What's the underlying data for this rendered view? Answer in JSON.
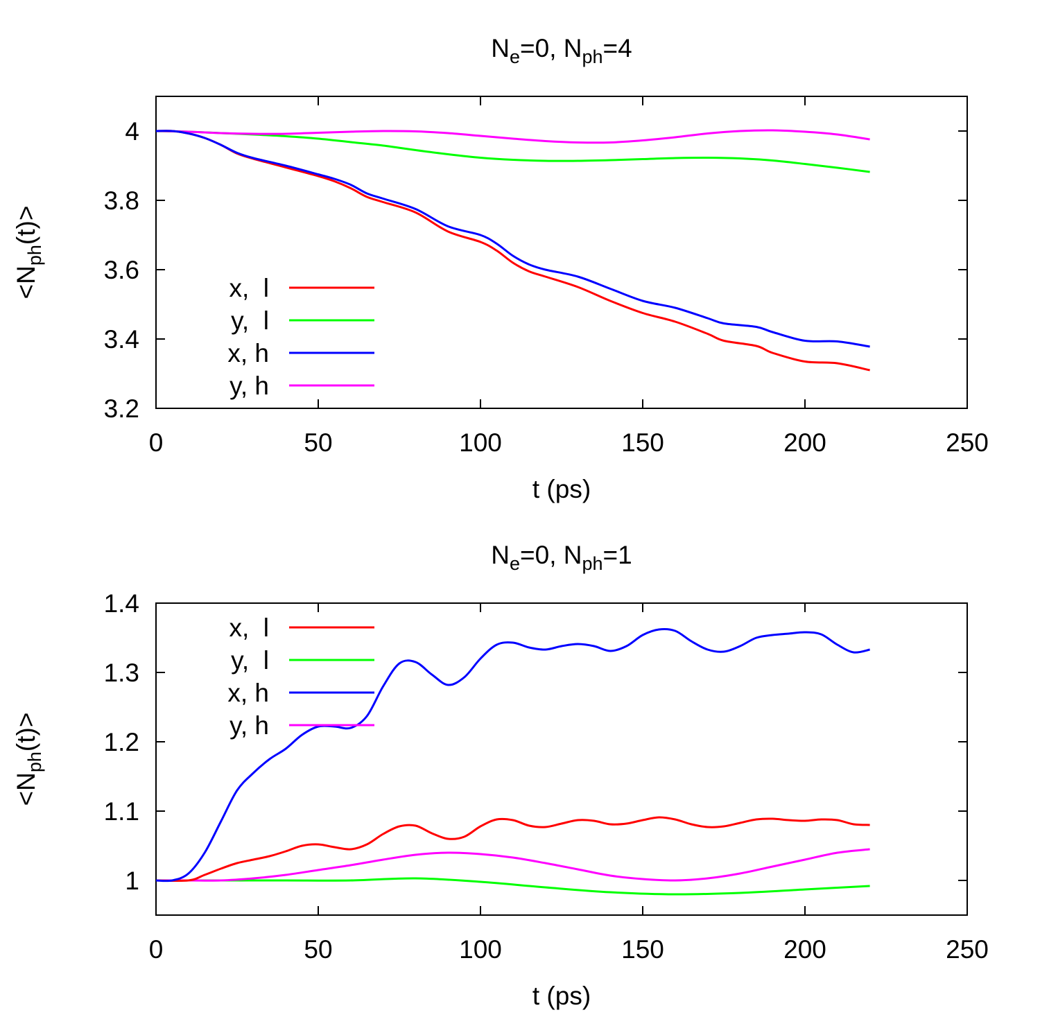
{
  "chart_data": [
    {
      "type": "line",
      "title": {
        "main": "N",
        "sub1": "e",
        "mid": "=0, N",
        "sub2": "ph",
        "end": "=4"
      },
      "xlabel": "t (ps)",
      "ylabel": {
        "pre": "<N",
        "sub": "ph",
        "post": "(t)>"
      },
      "xlim": [
        0,
        250
      ],
      "ylim": [
        3.2,
        4.1
      ],
      "xticks": [
        "0",
        "50",
        "100",
        "150",
        "200",
        "250"
      ],
      "xtick_values": [
        0,
        50,
        100,
        150,
        200,
        250
      ],
      "yticks": [
        "3.2",
        "3.4",
        "3.6",
        "3.8",
        "4"
      ],
      "ytick_values": [
        3.2,
        3.4,
        3.6,
        3.8,
        4.0
      ],
      "legend_placement": "lower-left",
      "series": [
        {
          "name": "x,  l",
          "color": "#ff0000",
          "points": [
            [
              0,
              4.0
            ],
            [
              5,
              4.0
            ],
            [
              10,
              3.993
            ],
            [
              15,
              3.98
            ],
            [
              20,
              3.96
            ],
            [
              25,
              3.935
            ],
            [
              30,
              3.92
            ],
            [
              40,
              3.895
            ],
            [
              50,
              3.87
            ],
            [
              55,
              3.855
            ],
            [
              60,
              3.835
            ],
            [
              65,
              3.81
            ],
            [
              70,
              3.795
            ],
            [
              80,
              3.765
            ],
            [
              90,
              3.71
            ],
            [
              100,
              3.68
            ],
            [
              105,
              3.655
            ],
            [
              110,
              3.62
            ],
            [
              115,
              3.595
            ],
            [
              120,
              3.58
            ],
            [
              130,
              3.55
            ],
            [
              140,
              3.51
            ],
            [
              150,
              3.475
            ],
            [
              160,
              3.45
            ],
            [
              170,
              3.415
            ],
            [
              175,
              3.395
            ],
            [
              185,
              3.38
            ],
            [
              190,
              3.36
            ],
            [
              200,
              3.335
            ],
            [
              210,
              3.33
            ],
            [
              220,
              3.31
            ]
          ]
        },
        {
          "name": "y,  l",
          "color": "#00ff00",
          "points": [
            [
              0,
              4.0
            ],
            [
              10,
              3.998
            ],
            [
              20,
              3.994
            ],
            [
              30,
              3.99
            ],
            [
              40,
              3.985
            ],
            [
              50,
              3.978
            ],
            [
              60,
              3.968
            ],
            [
              70,
              3.958
            ],
            [
              80,
              3.945
            ],
            [
              90,
              3.933
            ],
            [
              100,
              3.923
            ],
            [
              110,
              3.917
            ],
            [
              120,
              3.914
            ],
            [
              130,
              3.914
            ],
            [
              140,
              3.916
            ],
            [
              150,
              3.919
            ],
            [
              160,
              3.922
            ],
            [
              170,
              3.923
            ],
            [
              180,
              3.921
            ],
            [
              190,
              3.915
            ],
            [
              200,
              3.905
            ],
            [
              210,
              3.894
            ],
            [
              220,
              3.882
            ]
          ]
        },
        {
          "name": "x, h",
          "color": "#0000ff",
          "points": [
            [
              0,
              4.0
            ],
            [
              5,
              4.0
            ],
            [
              10,
              3.993
            ],
            [
              15,
              3.98
            ],
            [
              20,
              3.96
            ],
            [
              25,
              3.937
            ],
            [
              30,
              3.922
            ],
            [
              40,
              3.9
            ],
            [
              50,
              3.875
            ],
            [
              55,
              3.862
            ],
            [
              60,
              3.845
            ],
            [
              65,
              3.82
            ],
            [
              70,
              3.805
            ],
            [
              80,
              3.775
            ],
            [
              90,
              3.725
            ],
            [
              100,
              3.7
            ],
            [
              105,
              3.675
            ],
            [
              110,
              3.64
            ],
            [
              115,
              3.615
            ],
            [
              120,
              3.6
            ],
            [
              130,
              3.58
            ],
            [
              140,
              3.545
            ],
            [
              150,
              3.51
            ],
            [
              160,
              3.49
            ],
            [
              170,
              3.46
            ],
            [
              175,
              3.445
            ],
            [
              185,
              3.435
            ],
            [
              190,
              3.42
            ],
            [
              200,
              3.395
            ],
            [
              210,
              3.393
            ],
            [
              220,
              3.378
            ]
          ]
        },
        {
          "name": "y, h",
          "color": "#ff00ff",
          "points": [
            [
              0,
              4.0
            ],
            [
              10,
              3.998
            ],
            [
              20,
              3.994
            ],
            [
              30,
              3.992
            ],
            [
              40,
              3.992
            ],
            [
              50,
              3.995
            ],
            [
              60,
              3.998
            ],
            [
              70,
              4.0
            ],
            [
              80,
              3.999
            ],
            [
              90,
              3.994
            ],
            [
              100,
              3.986
            ],
            [
              110,
              3.978
            ],
            [
              120,
              3.971
            ],
            [
              130,
              3.967
            ],
            [
              140,
              3.967
            ],
            [
              150,
              3.973
            ],
            [
              160,
              3.982
            ],
            [
              170,
              3.993
            ],
            [
              180,
              4.0
            ],
            [
              190,
              4.002
            ],
            [
              200,
              3.998
            ],
            [
              210,
              3.99
            ],
            [
              220,
              3.976
            ]
          ]
        }
      ]
    },
    {
      "type": "line",
      "title": {
        "main": "N",
        "sub1": "e",
        "mid": "=0, N",
        "sub2": "ph",
        "end": "=1"
      },
      "xlabel": "t (ps)",
      "ylabel": {
        "pre": "<N",
        "sub": "ph",
        "post": "(t)>"
      },
      "xlim": [
        0,
        250
      ],
      "ylim": [
        0.95,
        1.4
      ],
      "xticks": [
        "0",
        "50",
        "100",
        "150",
        "200",
        "250"
      ],
      "xtick_values": [
        0,
        50,
        100,
        150,
        200,
        250
      ],
      "yticks": [
        "1",
        "1.1",
        "1.2",
        "1.3",
        "1.4"
      ],
      "ytick_values": [
        1.0,
        1.1,
        1.2,
        1.3,
        1.4
      ],
      "legend_placement": "top-left",
      "series": [
        {
          "name": "x,  l",
          "color": "#ff0000",
          "points": [
            [
              0,
              1.0
            ],
            [
              10,
              1.0
            ],
            [
              15,
              1.008
            ],
            [
              20,
              1.017
            ],
            [
              25,
              1.025
            ],
            [
              30,
              1.03
            ],
            [
              35,
              1.035
            ],
            [
              40,
              1.042
            ],
            [
              45,
              1.05
            ],
            [
              50,
              1.052
            ],
            [
              55,
              1.048
            ],
            [
              60,
              1.045
            ],
            [
              65,
              1.052
            ],
            [
              70,
              1.067
            ],
            [
              75,
              1.078
            ],
            [
              80,
              1.079
            ],
            [
              85,
              1.068
            ],
            [
              90,
              1.06
            ],
            [
              95,
              1.063
            ],
            [
              100,
              1.078
            ],
            [
              105,
              1.088
            ],
            [
              110,
              1.087
            ],
            [
              115,
              1.079
            ],
            [
              120,
              1.077
            ],
            [
              125,
              1.082
            ],
            [
              130,
              1.087
            ],
            [
              135,
              1.086
            ],
            [
              140,
              1.081
            ],
            [
              145,
              1.082
            ],
            [
              150,
              1.087
            ],
            [
              155,
              1.091
            ],
            [
              160,
              1.088
            ],
            [
              165,
              1.081
            ],
            [
              170,
              1.077
            ],
            [
              175,
              1.078
            ],
            [
              180,
              1.083
            ],
            [
              185,
              1.088
            ],
            [
              190,
              1.089
            ],
            [
              195,
              1.087
            ],
            [
              200,
              1.086
            ],
            [
              205,
              1.088
            ],
            [
              210,
              1.087
            ],
            [
              215,
              1.081
            ],
            [
              220,
              1.08
            ]
          ]
        },
        {
          "name": "y,  l",
          "color": "#00ff00",
          "points": [
            [
              0,
              1.0
            ],
            [
              20,
              1.0
            ],
            [
              40,
              1.0
            ],
            [
              60,
              1.0
            ],
            [
              80,
              1.003
            ],
            [
              100,
              0.998
            ],
            [
              120,
              0.99
            ],
            [
              140,
              0.983
            ],
            [
              160,
              0.98
            ],
            [
              180,
              0.982
            ],
            [
              200,
              0.987
            ],
            [
              220,
              0.992
            ]
          ]
        },
        {
          "name": "x, h",
          "color": "#0000ff",
          "points": [
            [
              0,
              1.0
            ],
            [
              5,
              1.0
            ],
            [
              10,
              1.01
            ],
            [
              15,
              1.04
            ],
            [
              20,
              1.085
            ],
            [
              25,
              1.13
            ],
            [
              30,
              1.155
            ],
            [
              35,
              1.175
            ],
            [
              40,
              1.19
            ],
            [
              45,
              1.21
            ],
            [
              50,
              1.222
            ],
            [
              55,
              1.222
            ],
            [
              60,
              1.22
            ],
            [
              65,
              1.237
            ],
            [
              70,
              1.28
            ],
            [
              75,
              1.313
            ],
            [
              80,
              1.315
            ],
            [
              85,
              1.297
            ],
            [
              90,
              1.282
            ],
            [
              95,
              1.293
            ],
            [
              100,
              1.32
            ],
            [
              105,
              1.34
            ],
            [
              110,
              1.343
            ],
            [
              115,
              1.336
            ],
            [
              120,
              1.333
            ],
            [
              125,
              1.338
            ],
            [
              130,
              1.341
            ],
            [
              135,
              1.338
            ],
            [
              140,
              1.331
            ],
            [
              145,
              1.338
            ],
            [
              150,
              1.354
            ],
            [
              155,
              1.362
            ],
            [
              160,
              1.36
            ],
            [
              165,
              1.345
            ],
            [
              170,
              1.333
            ],
            [
              175,
              1.33
            ],
            [
              180,
              1.338
            ],
            [
              185,
              1.35
            ],
            [
              190,
              1.354
            ],
            [
              195,
              1.356
            ],
            [
              200,
              1.358
            ],
            [
              205,
              1.355
            ],
            [
              210,
              1.34
            ],
            [
              215,
              1.329
            ],
            [
              220,
              1.333
            ]
          ]
        },
        {
          "name": "y, h",
          "color": "#ff00ff",
          "points": [
            [
              0,
              1.0
            ],
            [
              10,
              1.0
            ],
            [
              20,
              1.0
            ],
            [
              30,
              1.003
            ],
            [
              40,
              1.008
            ],
            [
              50,
              1.015
            ],
            [
              60,
              1.022
            ],
            [
              70,
              1.03
            ],
            [
              80,
              1.037
            ],
            [
              90,
              1.04
            ],
            [
              100,
              1.038
            ],
            [
              110,
              1.033
            ],
            [
              120,
              1.025
            ],
            [
              130,
              1.016
            ],
            [
              140,
              1.007
            ],
            [
              150,
              1.002
            ],
            [
              160,
              1.0
            ],
            [
              170,
              1.003
            ],
            [
              180,
              1.01
            ],
            [
              190,
              1.02
            ],
            [
              200,
              1.03
            ],
            [
              210,
              1.04
            ],
            [
              220,
              1.045
            ]
          ]
        }
      ]
    }
  ]
}
